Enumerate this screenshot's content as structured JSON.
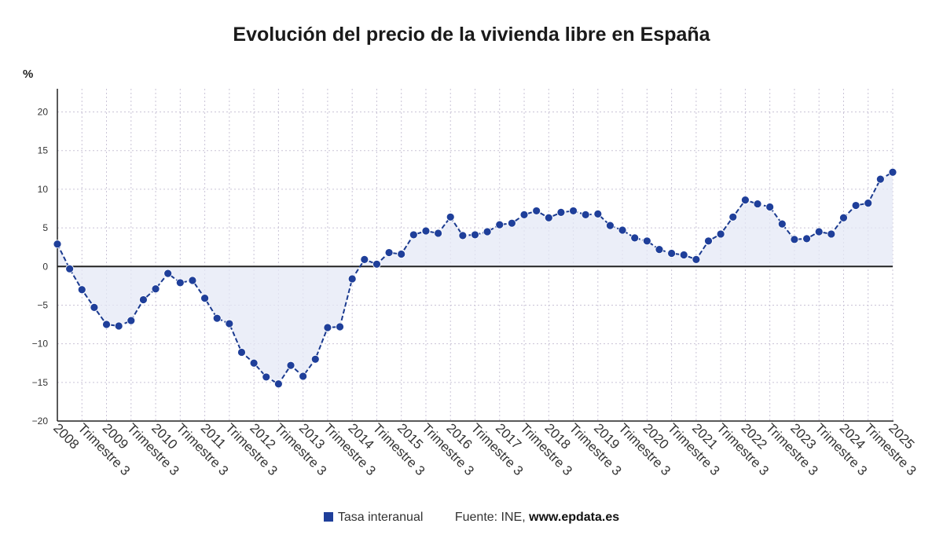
{
  "title": "Evolución del precio de la vivienda libre en España",
  "unit_label": "%",
  "legend": {
    "series_label": "Tasa interanual",
    "source_prefix": "Fuente: INE,",
    "source_url": "www.epdata.es"
  },
  "colors": {
    "line": "#1a3a8f",
    "marker": "#1f3f9a",
    "area": "#e4e8f6",
    "grid": "#c9c3d6",
    "zero_line": "#222222",
    "axis_text": "#333333"
  },
  "chart_data": {
    "type": "line",
    "x_tick_labels": [
      "2008",
      "Trimestre 3",
      "2009",
      "Trimestre 3",
      "2010",
      "Trimestre 3",
      "2011",
      "Trimestre 3",
      "2012",
      "Trimestre 3",
      "2013",
      "Trimestre 3",
      "2014",
      "Trimestre 3",
      "2015",
      "Trimestre 3",
      "2016",
      "Trimestre 3",
      "2017",
      "Trimestre 3",
      "2018",
      "Trimestre 3",
      "2019",
      "Trimestre 3",
      "2020",
      "Trimestre 3",
      "2021",
      "Trimestre 3",
      "2022",
      "Trimestre 3",
      "2023",
      "Trimestre 3",
      "2024",
      "Trimestre 3",
      "2025"
    ],
    "yticks": [
      20,
      15,
      10,
      5,
      0,
      -5,
      -10,
      -15,
      -20
    ],
    "ytick_labels": [
      "20",
      "15",
      "10",
      "5",
      "0",
      "−5",
      "−10",
      "−15",
      "−20"
    ],
    "ylim": [
      -20,
      23
    ],
    "grid": true,
    "area_fill": true,
    "series": [
      {
        "name": "Tasa interanual",
        "values": [
          2.9,
          -0.3,
          -3.0,
          -5.3,
          -7.5,
          -7.7,
          -7.0,
          -4.3,
          -2.9,
          -0.9,
          -2.1,
          -1.8,
          -4.1,
          -6.7,
          -7.4,
          -11.1,
          -12.5,
          -14.3,
          -15.2,
          -12.8,
          -14.2,
          -12.0,
          -7.9,
          -7.8,
          -1.6,
          0.9,
          0.3,
          1.8,
          1.6,
          4.1,
          4.6,
          4.3,
          6.4,
          4.0,
          4.1,
          4.5,
          5.4,
          5.6,
          6.7,
          7.2,
          6.3,
          7.0,
          7.2,
          6.7,
          6.8,
          5.3,
          4.7,
          3.7,
          3.3,
          2.2,
          1.7,
          1.5,
          0.9,
          3.3,
          4.2,
          6.4,
          8.6,
          8.1,
          7.7,
          5.5,
          3.5,
          3.6,
          4.5,
          4.2,
          6.3,
          7.9,
          8.2,
          11.3,
          12.2
        ]
      }
    ]
  }
}
